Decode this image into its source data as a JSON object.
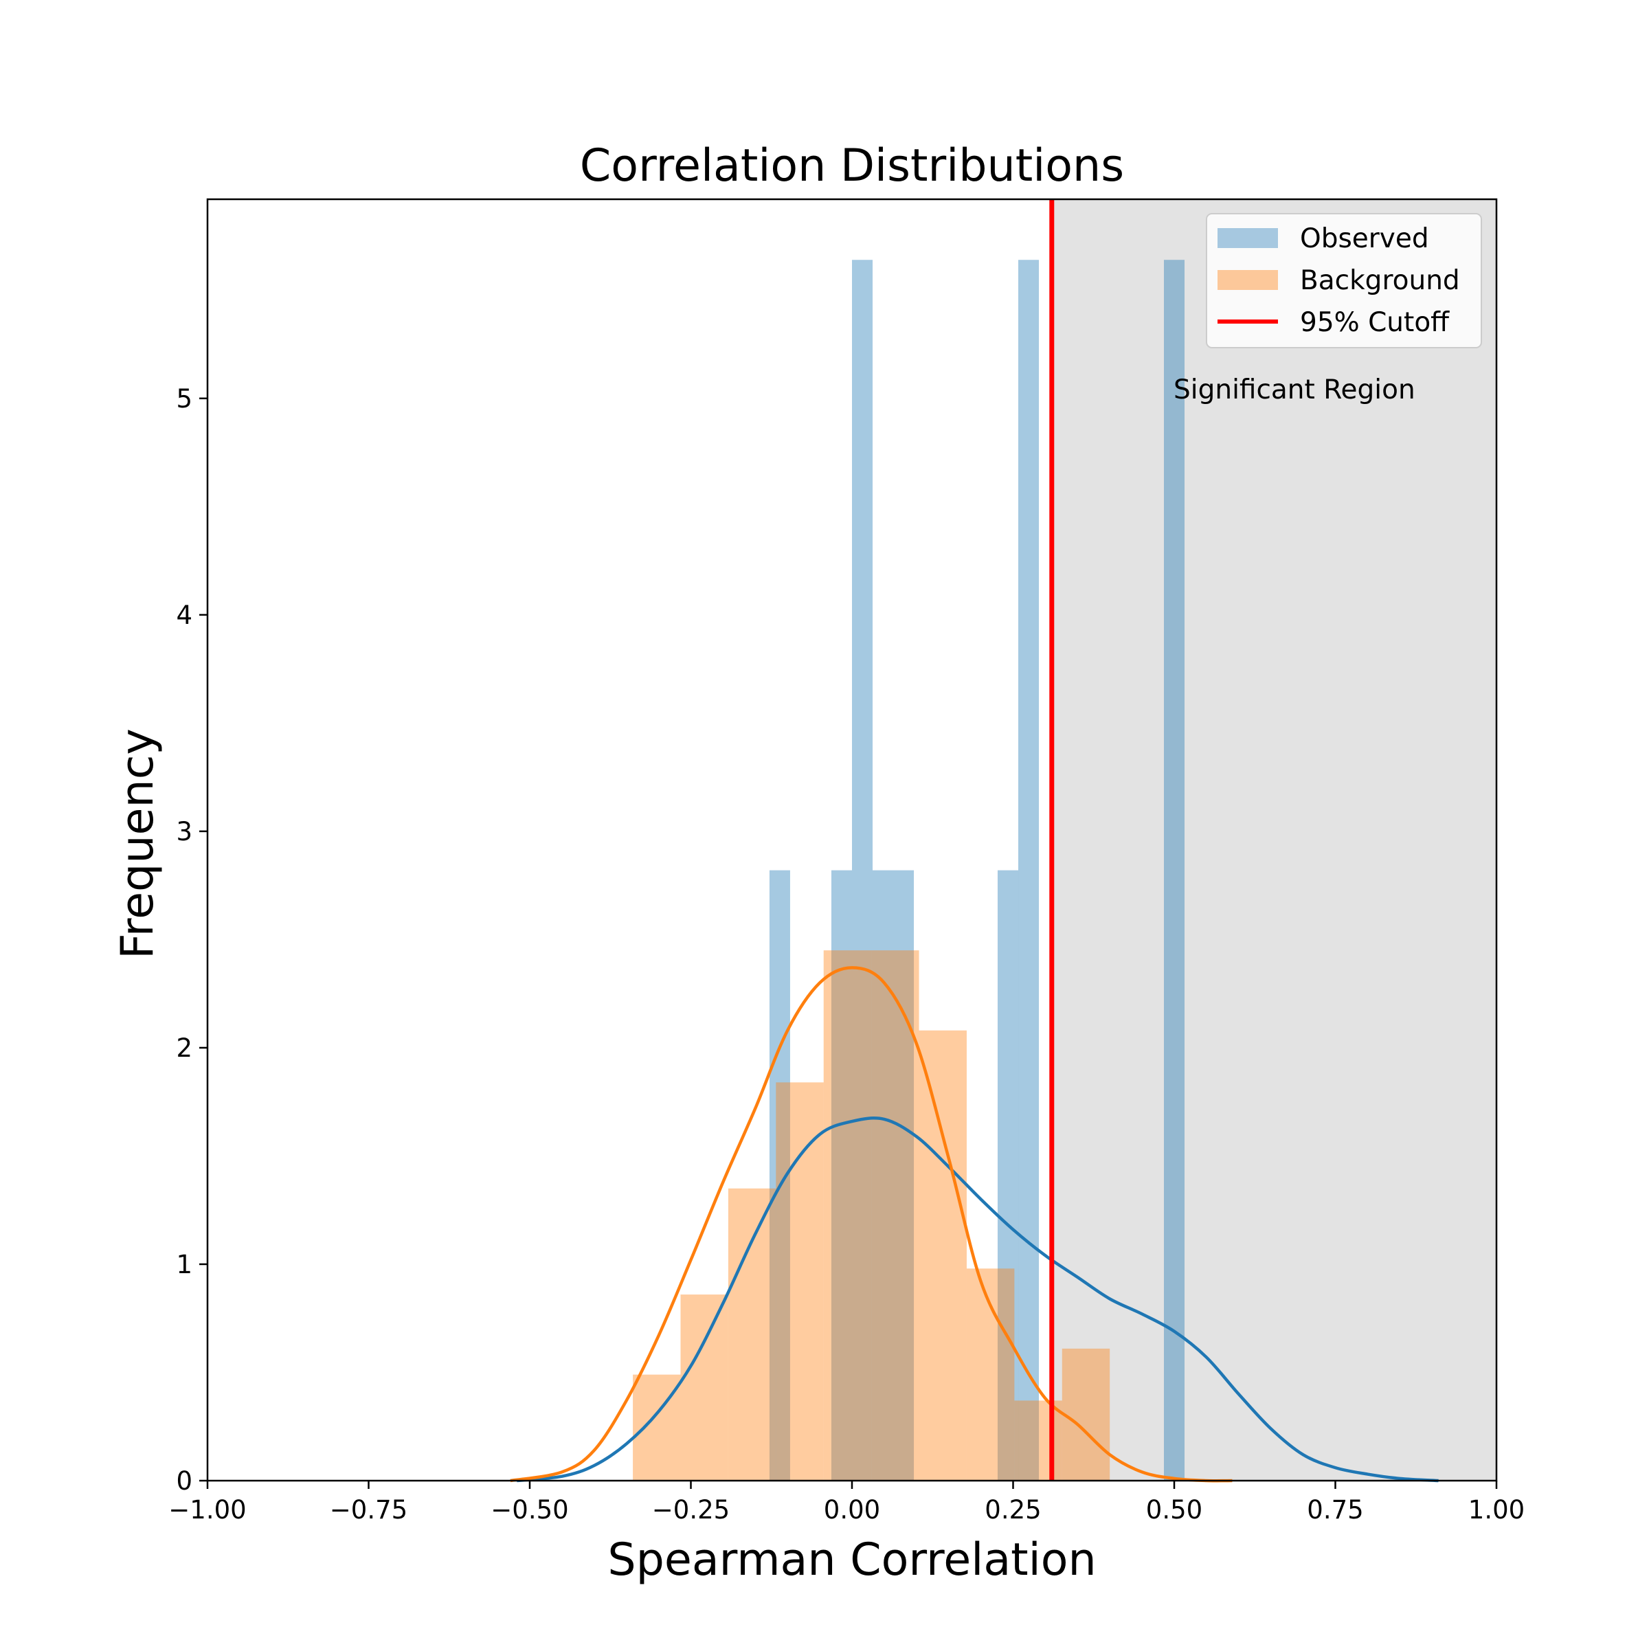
{
  "chart_data": {
    "type": "bar",
    "title": "Correlation Distributions",
    "xlabel": "Spearman Correlation",
    "ylabel": "Frequency",
    "xlim": [
      -1.0,
      1.0
    ],
    "ylim": [
      0,
      5.92
    ],
    "x_ticks": [
      "−1.00",
      "−0.75",
      "−0.50",
      "−0.25",
      "0.00",
      "0.25",
      "0.50",
      "0.75",
      "1.00"
    ],
    "x_tick_values": [
      -1.0,
      -0.75,
      -0.5,
      -0.25,
      0.0,
      0.25,
      0.5,
      0.75,
      1.0
    ],
    "y_ticks": [
      "0",
      "1",
      "2",
      "3",
      "4",
      "5"
    ],
    "y_tick_values": [
      0,
      1,
      2,
      3,
      4,
      5
    ],
    "grid": false,
    "legend_position": "top-right",
    "colors": {
      "observed": "#1f77b4",
      "background": "#ff7f0e",
      "cutoff": "#ff0000",
      "significant_region": "#808080"
    },
    "legend": [
      {
        "label": "Observed",
        "kind": "patch",
        "color": "#a6c8e0"
      },
      {
        "label": "Background",
        "kind": "patch",
        "color": "#fcc89a"
      },
      {
        "label": "95% Cutoff",
        "kind": "line",
        "color": "#ff0000"
      }
    ],
    "series": [
      {
        "name": "Observed",
        "kind": "histogram",
        "bins": [
          {
            "x0": -0.128,
            "x1": -0.096,
            "value": 2.82
          },
          {
            "x0": -0.032,
            "x1": 0.0,
            "value": 2.82
          },
          {
            "x0": 0.0,
            "x1": 0.032,
            "value": 5.64
          },
          {
            "x0": 0.032,
            "x1": 0.096,
            "value": 2.82
          },
          {
            "x0": 0.226,
            "x1": 0.258,
            "value": 2.82
          },
          {
            "x0": 0.258,
            "x1": 0.29,
            "value": 5.64
          },
          {
            "x0": 0.484,
            "x1": 0.516,
            "value": 5.64
          }
        ]
      },
      {
        "name": "Background",
        "kind": "histogram",
        "bins": [
          {
            "x0": -0.34,
            "x1": -0.266,
            "value": 0.49
          },
          {
            "x0": -0.266,
            "x1": -0.192,
            "value": 0.86
          },
          {
            "x0": -0.192,
            "x1": -0.118,
            "value": 1.35
          },
          {
            "x0": -0.118,
            "x1": -0.044,
            "value": 1.84
          },
          {
            "x0": -0.044,
            "x1": 0.03,
            "value": 2.45
          },
          {
            "x0": 0.03,
            "x1": 0.104,
            "value": 2.45
          },
          {
            "x0": 0.104,
            "x1": 0.178,
            "value": 2.08
          },
          {
            "x0": 0.178,
            "x1": 0.252,
            "value": 0.98
          },
          {
            "x0": 0.252,
            "x1": 0.326,
            "value": 0.37
          },
          {
            "x0": 0.326,
            "x1": 0.4,
            "value": 0.61
          }
        ]
      },
      {
        "name": "Observed",
        "kind": "kde",
        "x": [
          -0.52,
          -0.45,
          -0.4,
          -0.35,
          -0.3,
          -0.25,
          -0.2,
          -0.15,
          -0.1,
          -0.05,
          0.0,
          0.05,
          0.1,
          0.15,
          0.2,
          0.25,
          0.3,
          0.35,
          0.4,
          0.45,
          0.5,
          0.55,
          0.6,
          0.65,
          0.7,
          0.75,
          0.8,
          0.85,
          0.91
        ],
        "y": [
          0.0,
          0.02,
          0.07,
          0.17,
          0.32,
          0.53,
          0.82,
          1.14,
          1.42,
          1.6,
          1.66,
          1.67,
          1.59,
          1.45,
          1.3,
          1.16,
          1.04,
          0.94,
          0.84,
          0.77,
          0.69,
          0.57,
          0.4,
          0.24,
          0.12,
          0.06,
          0.03,
          0.01,
          0.0
        ]
      },
      {
        "name": "Background",
        "kind": "kde",
        "x": [
          -0.53,
          -0.45,
          -0.4,
          -0.35,
          -0.3,
          -0.25,
          -0.2,
          -0.15,
          -0.1,
          -0.05,
          0.0,
          0.05,
          0.1,
          0.15,
          0.2,
          0.25,
          0.3,
          0.35,
          0.4,
          0.45,
          0.5,
          0.55,
          0.59
        ],
        "y": [
          0.0,
          0.04,
          0.14,
          0.37,
          0.67,
          1.02,
          1.38,
          1.72,
          2.08,
          2.3,
          2.37,
          2.3,
          2.02,
          1.49,
          0.92,
          0.62,
          0.38,
          0.26,
          0.12,
          0.04,
          0.01,
          0.0,
          0.0
        ]
      }
    ],
    "vertical_line": {
      "label": "95% Cutoff",
      "x": 0.31
    },
    "shaded_region": {
      "x0": 0.31,
      "x1": 1.0,
      "label": "Significant Region"
    }
  }
}
